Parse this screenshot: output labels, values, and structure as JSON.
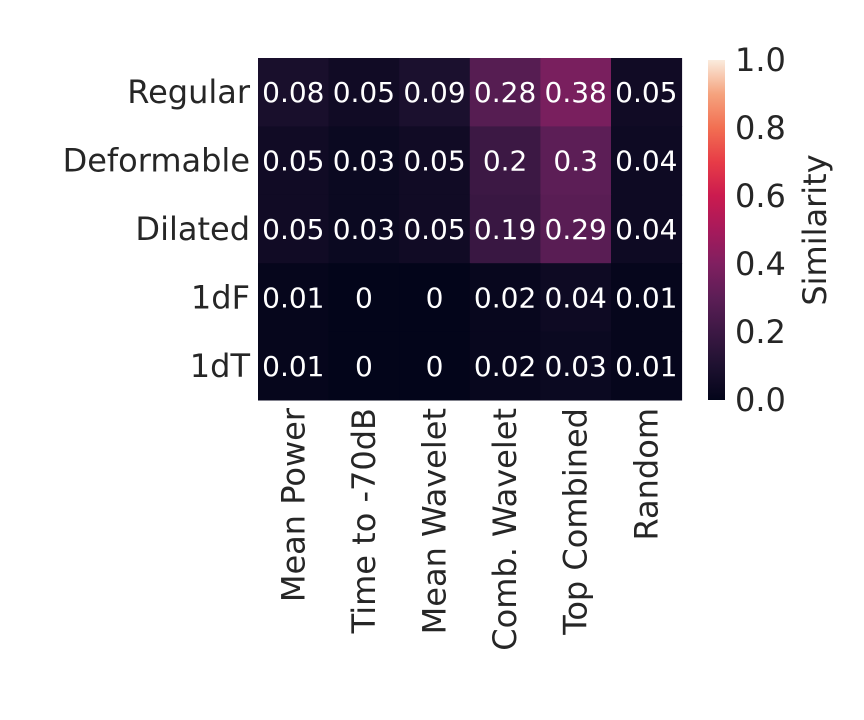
{
  "chart_data": {
    "type": "heatmap",
    "rows": [
      "Regular",
      "Deformable",
      "Dilated",
      "1dF",
      "1dT"
    ],
    "columns": [
      "Mean Power",
      "Time to -70dB",
      "Mean Wavelet",
      "Comb. Wavelet",
      "Top Combined",
      "Random"
    ],
    "values": [
      [
        0.08,
        0.05,
        0.09,
        0.28,
        0.38,
        0.05
      ],
      [
        0.05,
        0.03,
        0.05,
        0.2,
        0.3,
        0.04
      ],
      [
        0.05,
        0.03,
        0.05,
        0.19,
        0.29,
        0.04
      ],
      [
        0.01,
        0,
        0,
        0.02,
        0.04,
        0.01
      ],
      [
        0.01,
        0,
        0,
        0.02,
        0.03,
        0.01
      ]
    ],
    "colorbar": {
      "label": "Similarity",
      "range": [
        0,
        1
      ],
      "ticks": [
        "0.0",
        "0.2",
        "0.4",
        "0.6",
        "0.8",
        "1.0"
      ],
      "colormap": "rocket"
    },
    "annotations": "cell values shown"
  }
}
